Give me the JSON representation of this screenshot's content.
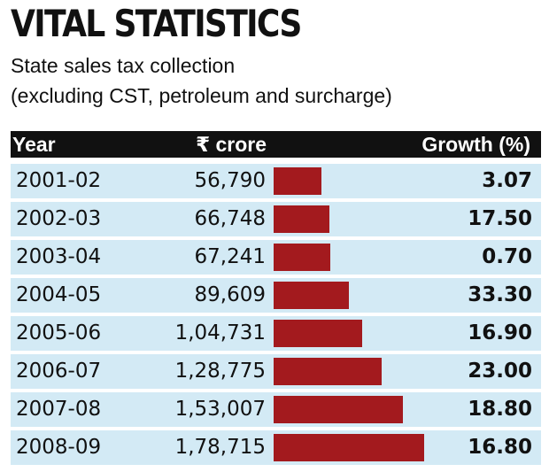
{
  "chart_data": {
    "type": "bar",
    "title": "VITAL STATISTICS",
    "subtitle_line1": "State sales tax collection",
    "subtitle_line2": "(excluding CST, petroleum and surcharge)",
    "columns": {
      "year": "Year",
      "value": "₹ crore",
      "growth": "Growth (%)"
    },
    "categories": [
      "2001-02",
      "2002-03",
      "2003-04",
      "2004-05",
      "2005-06",
      "2006-07",
      "2007-08",
      "2008-09"
    ],
    "values": [
      56790,
      66748,
      67241,
      89609,
      104731,
      128775,
      153007,
      178715
    ],
    "value_labels": [
      "56,790",
      "66,748",
      "67,241",
      "89,609",
      "1,04,731",
      "1,28,775",
      "1,53,007",
      "1,78,715"
    ],
    "growth_labels": [
      "3.07",
      "17.50",
      "0.70",
      "33.30",
      "16.90",
      "23.00",
      "18.80",
      "16.80"
    ],
    "growth": [
      3.07,
      17.5,
      0.7,
      33.3,
      16.9,
      23.0,
      18.8,
      16.8
    ],
    "bar_color": "#a31a1e",
    "row_color": "#d3eaf5",
    "header_color": "#111111"
  }
}
